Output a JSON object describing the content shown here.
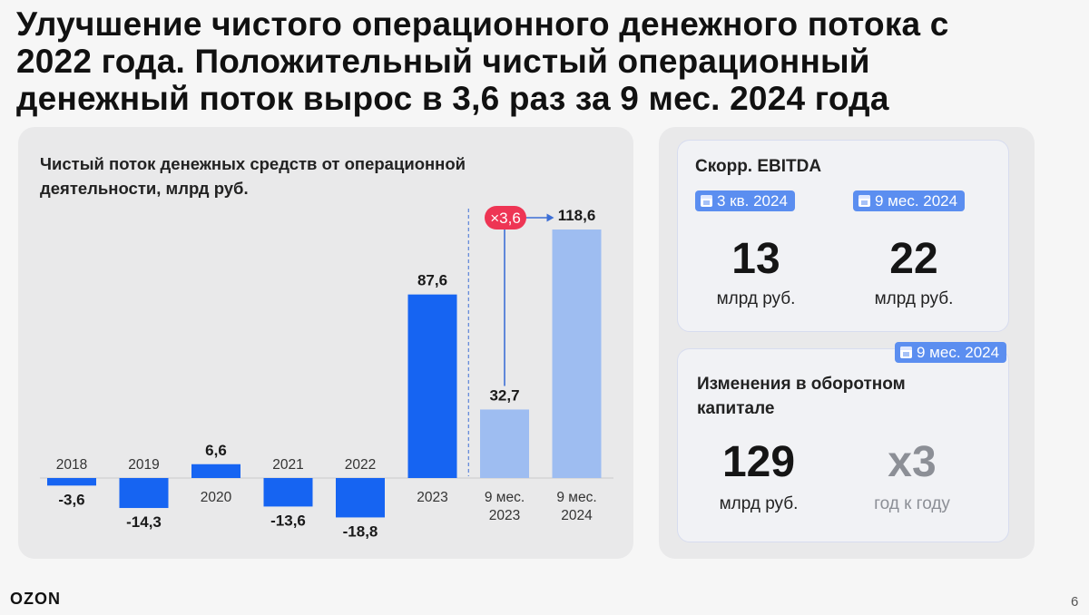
{
  "headline": [
    "Улучшение чистого операционного денежного потока с",
    "2022 года. Положительный чистый операционный",
    "денежный поток вырос в 3,6 раз за 9 мес. 2024 года"
  ],
  "chart_title": [
    "Чистый поток денежных средств от операционной",
    "деятельности, млрд руб."
  ],
  "chart_data": {
    "type": "bar",
    "title": "Чистый поток денежных средств от операционной деятельности, млрд руб.",
    "categories": [
      "2018",
      "2019",
      "2020",
      "2021",
      "2022",
      "2023",
      "9 мес. 2023",
      "9 мес. 2024"
    ],
    "values": [
      -3.6,
      -14.3,
      6.6,
      -13.6,
      -18.8,
      87.6,
      32.7,
      118.6
    ],
    "value_labels": [
      "-3,6",
      "-14,3",
      "6,6",
      "-13,6",
      "-18,8",
      "87,6",
      "32,7",
      "118,6"
    ],
    "category_lines": [
      [
        "2018"
      ],
      [
        "2019"
      ],
      [
        "2020"
      ],
      [
        "2021"
      ],
      [
        "2022"
      ],
      [
        "2023"
      ],
      [
        "9 мес.",
        "2023"
      ],
      [
        "9 мес.",
        "2024"
      ]
    ],
    "colors": [
      "#1664f2",
      "#1664f2",
      "#1664f2",
      "#1664f2",
      "#1664f2",
      "#1664f2",
      "#9ebdf1",
      "#9ebdf1"
    ],
    "growth_label": "×3,6",
    "growth_color": "#ee3554",
    "grid": false
  },
  "ebitda": {
    "title": "Скорр. EBITDA",
    "left": {
      "badge": "3 кв. 2024",
      "value": "13",
      "unit": "млрд руб."
    },
    "right": {
      "badge": "9 мес. 2024",
      "value": "22",
      "unit": "млрд руб."
    }
  },
  "working_capital": {
    "badge": "9 мес. 2024",
    "title": [
      "Изменения в оборотном",
      "капитале"
    ],
    "left": {
      "value": "129",
      "unit": "млрд руб."
    },
    "right": {
      "value": "x3",
      "unit": "год к году"
    }
  },
  "logo": "OZON",
  "page_number": "6",
  "colors": {
    "accent": "#1664f2",
    "light_accent": "#9ebdf1",
    "badge": "#5b8ef0",
    "growth": "#ee3554"
  }
}
